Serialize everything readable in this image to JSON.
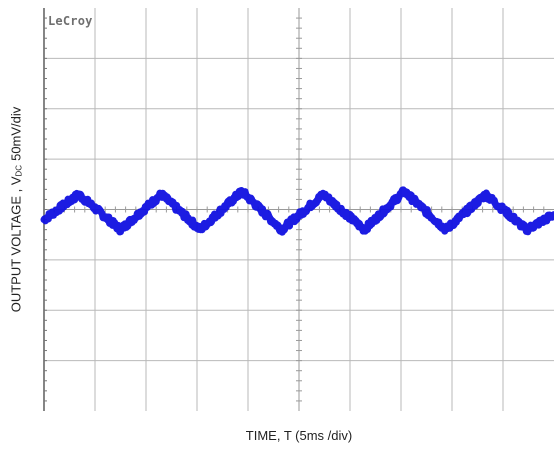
{
  "brand": "LeCroy",
  "chart_data": {
    "type": "line",
    "xlabel": "TIME, T (5ms /div)",
    "ylabel_main": "OUTPUT VOLTAGE , V",
    "ylabel_sub": "DC",
    "ylabel_unit": "50mV/div",
    "divisions": {
      "x": 10,
      "y": 8
    },
    "x_range_ms": [
      0,
      50
    ],
    "y_range_mV": [
      -200,
      200
    ],
    "grid": true,
    "series": [
      {
        "color": "#1010e0",
        "waveform": "triangle-ripple",
        "x_ms": [
          0,
          3.4,
          7.5,
          11.5,
          15.3,
          19.4,
          23.3,
          27.4,
          31.4,
          35.3,
          39.4,
          43.3,
          47.3,
          50
        ],
        "y_mV": [
          -10,
          15,
          -20,
          15,
          -20,
          18,
          -20,
          15,
          -20,
          18,
          -20,
          15,
          -20,
          -5
        ]
      }
    ],
    "trace_color": "#1010e0"
  }
}
